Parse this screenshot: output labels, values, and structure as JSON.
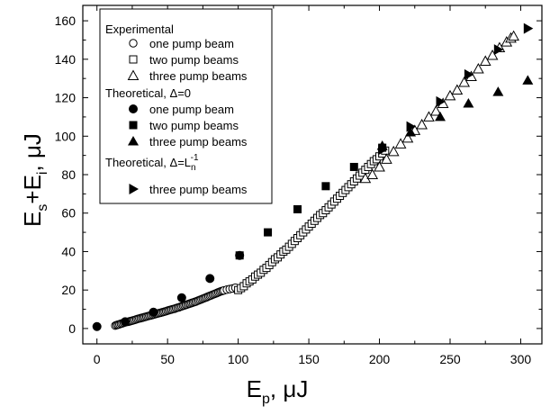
{
  "chart_data": {
    "type": "scatter",
    "xlim": [
      -10,
      315
    ],
    "ylim": [
      -8,
      168
    ],
    "x_ticks": [
      0,
      50,
      100,
      150,
      200,
      250,
      300
    ],
    "y_ticks": [
      0,
      20,
      40,
      60,
      80,
      100,
      120,
      140,
      160
    ],
    "x_minor_step": 25,
    "y_minor_step": 10,
    "xlabel": {
      "main": "E",
      "sub": "p",
      "unit": ", μJ"
    },
    "ylabel": {
      "main1": "E",
      "sub1": "s",
      "mid": "+E",
      "sub2": "i",
      "unit": ", μJ"
    },
    "legend": {
      "placement": "top-left",
      "groups": [
        {
          "title": "Experimental",
          "items": [
            "one pump beam",
            "two pump beams",
            "three pump beams"
          ]
        },
        {
          "title": "Theoretical, Δ=0",
          "items": [
            "one pump beam",
            "two pump beams",
            "three pump beams"
          ]
        },
        {
          "title_prefix": "Theoretical, Δ=L",
          "title_sub": "n",
          "title_sup": "-1",
          "items": [
            "three pump beams"
          ]
        }
      ]
    },
    "series": [
      {
        "marker": "open-circle",
        "points": [
          [
            13,
            1.5
          ],
          [
            14,
            1.8
          ],
          [
            15,
            2
          ],
          [
            16,
            2.2
          ],
          [
            17,
            2.5
          ],
          [
            18,
            2.7
          ],
          [
            19,
            3
          ],
          [
            20,
            3.2
          ],
          [
            21,
            3.4
          ],
          [
            22,
            3.5
          ],
          [
            23,
            3.7
          ],
          [
            24,
            3.9
          ],
          [
            25,
            4.1
          ],
          [
            26,
            4.3
          ],
          [
            27,
            4.5
          ],
          [
            28,
            4.8
          ],
          [
            29,
            5
          ],
          [
            30,
            5.2
          ],
          [
            31,
            5.4
          ],
          [
            32,
            5.6
          ],
          [
            33,
            5.8
          ],
          [
            34,
            6
          ],
          [
            35,
            6.2
          ],
          [
            36,
            6.4
          ],
          [
            37,
            6.6
          ],
          [
            38,
            6.8
          ],
          [
            39,
            7
          ],
          [
            40,
            7.2
          ],
          [
            41,
            7.4
          ],
          [
            42,
            7.6
          ],
          [
            43,
            7.8
          ],
          [
            44,
            8
          ],
          [
            45,
            8.2
          ],
          [
            46,
            8.4
          ],
          [
            47,
            8.6
          ],
          [
            48,
            8.8
          ],
          [
            49,
            9
          ],
          [
            50,
            9.3
          ],
          [
            51,
            9.5
          ],
          [
            52,
            9.7
          ],
          [
            53,
            9.9
          ],
          [
            54,
            10.1
          ],
          [
            55,
            10.3
          ],
          [
            56,
            10.6
          ],
          [
            57,
            10.8
          ],
          [
            58,
            11
          ],
          [
            59,
            11.3
          ],
          [
            60,
            11.5
          ],
          [
            61,
            11.8
          ],
          [
            62,
            12
          ],
          [
            63,
            12.3
          ],
          [
            64,
            12.5
          ],
          [
            65,
            12.8
          ],
          [
            66,
            13
          ],
          [
            67,
            13.3
          ],
          [
            68,
            13.5
          ],
          [
            69,
            13.8
          ],
          [
            70,
            14
          ],
          [
            71,
            14.3
          ],
          [
            72,
            14.6
          ],
          [
            73,
            14.9
          ],
          [
            74,
            15.2
          ],
          [
            75,
            15.5
          ],
          [
            76,
            15.8
          ],
          [
            77,
            16.1
          ],
          [
            78,
            16.4
          ],
          [
            79,
            16.7
          ],
          [
            80,
            17
          ],
          [
            81,
            17.3
          ],
          [
            82,
            17.6
          ],
          [
            83,
            17.9
          ],
          [
            84,
            18.2
          ],
          [
            85,
            18.5
          ],
          [
            86,
            18.8
          ],
          [
            87,
            19.1
          ],
          [
            88,
            19.4
          ],
          [
            89,
            19.6
          ],
          [
            90,
            19.8
          ],
          [
            92,
            20.2
          ],
          [
            94,
            20.5
          ],
          [
            96,
            20.8
          ],
          [
            98,
            21.2
          ]
        ]
      },
      {
        "marker": "open-square",
        "points": [
          [
            100,
            20
          ],
          [
            102,
            21
          ],
          [
            104,
            22
          ],
          [
            106,
            23.5
          ],
          [
            108,
            24.5
          ],
          [
            110,
            25.5
          ],
          [
            112,
            27
          ],
          [
            114,
            28
          ],
          [
            116,
            29
          ],
          [
            118,
            30.5
          ],
          [
            120,
            31.5
          ],
          [
            122,
            33
          ],
          [
            124,
            34.5
          ],
          [
            126,
            36
          ],
          [
            128,
            37
          ],
          [
            130,
            38.5
          ],
          [
            132,
            40
          ],
          [
            134,
            41
          ],
          [
            136,
            42.5
          ],
          [
            138,
            44
          ],
          [
            140,
            45.5
          ],
          [
            142,
            47
          ],
          [
            144,
            48.5
          ],
          [
            146,
            50
          ],
          [
            148,
            51.5
          ],
          [
            150,
            53
          ],
          [
            152,
            54.5
          ],
          [
            154,
            56
          ],
          [
            156,
            57.5
          ],
          [
            158,
            59
          ],
          [
            160,
            60
          ],
          [
            162,
            61.5
          ],
          [
            164,
            63
          ],
          [
            166,
            64.5
          ],
          [
            168,
            66
          ],
          [
            170,
            67.5
          ],
          [
            172,
            69
          ],
          [
            174,
            70.5
          ],
          [
            176,
            72
          ],
          [
            178,
            73.5
          ],
          [
            180,
            75
          ],
          [
            182,
            76.5
          ],
          [
            184,
            78
          ],
          [
            186,
            79.5
          ],
          [
            188,
            81
          ],
          [
            190,
            82.5
          ],
          [
            192,
            84
          ],
          [
            194,
            85.5
          ],
          [
            196,
            87
          ],
          [
            198,
            88
          ],
          [
            200,
            89.5
          ],
          [
            202,
            91
          ],
          [
            204,
            92.5
          ]
        ]
      },
      {
        "marker": "open-triangle",
        "points": [
          [
            190,
            78
          ],
          [
            195,
            80
          ],
          [
            200,
            84
          ],
          [
            205,
            88
          ],
          [
            210,
            92
          ],
          [
            215,
            96
          ],
          [
            220,
            99
          ],
          [
            225,
            103
          ],
          [
            230,
            106
          ],
          [
            235,
            110
          ],
          [
            240,
            113
          ],
          [
            245,
            117
          ],
          [
            250,
            121
          ],
          [
            255,
            124
          ],
          [
            260,
            128
          ],
          [
            265,
            131
          ],
          [
            270,
            135
          ],
          [
            275,
            139
          ],
          [
            280,
            142
          ],
          [
            285,
            146
          ],
          [
            290,
            149
          ],
          [
            293,
            151
          ],
          [
            295,
            152
          ]
        ]
      },
      {
        "marker": "filled-circle",
        "points": [
          [
            0,
            1
          ],
          [
            20,
            3.5
          ],
          [
            40,
            8.5
          ],
          [
            60,
            16
          ],
          [
            80,
            26
          ],
          [
            101,
            38
          ]
        ]
      },
      {
        "marker": "filled-square",
        "points": [
          [
            101,
            38
          ],
          [
            121,
            50
          ],
          [
            142,
            62
          ],
          [
            162,
            74
          ],
          [
            182,
            84
          ],
          [
            202,
            94
          ]
        ]
      },
      {
        "marker": "filled-triangle",
        "points": [
          [
            202,
            95
          ],
          [
            222,
            102
          ],
          [
            243,
            110
          ],
          [
            263,
            117
          ],
          [
            284,
            123
          ],
          [
            305,
            129
          ]
        ]
      },
      {
        "marker": "filled-right-triangle",
        "points": [
          [
            202,
            93
          ],
          [
            222,
            105
          ],
          [
            243,
            118
          ],
          [
            263,
            132
          ],
          [
            284,
            145
          ],
          [
            305,
            156
          ]
        ]
      }
    ]
  }
}
